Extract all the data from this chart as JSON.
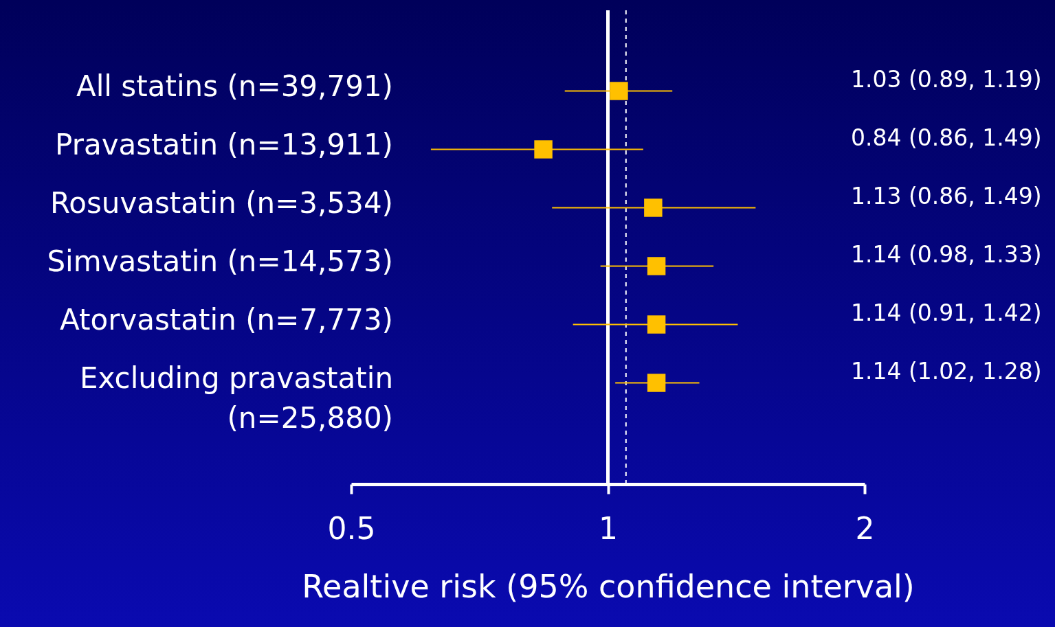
{
  "chart_data": {
    "type": "scatter",
    "orientation": "horizontal",
    "xlabel": "Realtive risk (95% confidence interval)",
    "categories": [
      "All statins (n=39,791)",
      "Pravastatin (n=13,911)",
      "Rosuvastatin (n=3,534)",
      "Simvastatin (n=14,573)",
      "Atorvastatin (n=7,773)",
      "Excluding pravastatin (n=25,880)"
    ],
    "series": [
      {
        "color": "#ffc000",
        "values": [
          1.03,
          0.84,
          1.13,
          1.14,
          1.14,
          1.14
        ],
        "errors": [
          [
            0.89,
            1.19
          ],
          [
            0.62,
            1.1
          ],
          [
            0.86,
            1.49
          ],
          [
            0.98,
            1.33
          ],
          [
            0.91,
            1.42
          ],
          [
            1.02,
            1.28
          ]
        ],
        "value_labels": [
          "1.03 (0.89, 1.19)",
          "0.84 (0.86, 1.49)",
          "1.13 (0.86, 1.49)",
          "1.14 (0.98, 1.33)",
          "1.14 (0.91, 1.42)",
          "1.14 (1.02, 1.28)"
        ]
      }
    ],
    "log": "x",
    "xlim": [
      0.5,
      2
    ],
    "xticks": [
      0.5,
      1,
      2
    ],
    "marker": "square",
    "ref_lines": [
      {
        "axis": "x",
        "value": 1,
        "color": "#ffffff",
        "line_style": "solid"
      },
      {
        "axis": "x",
        "value": 1.05,
        "color": "#ffffff",
        "line_style": "dashed"
      }
    ]
  }
}
